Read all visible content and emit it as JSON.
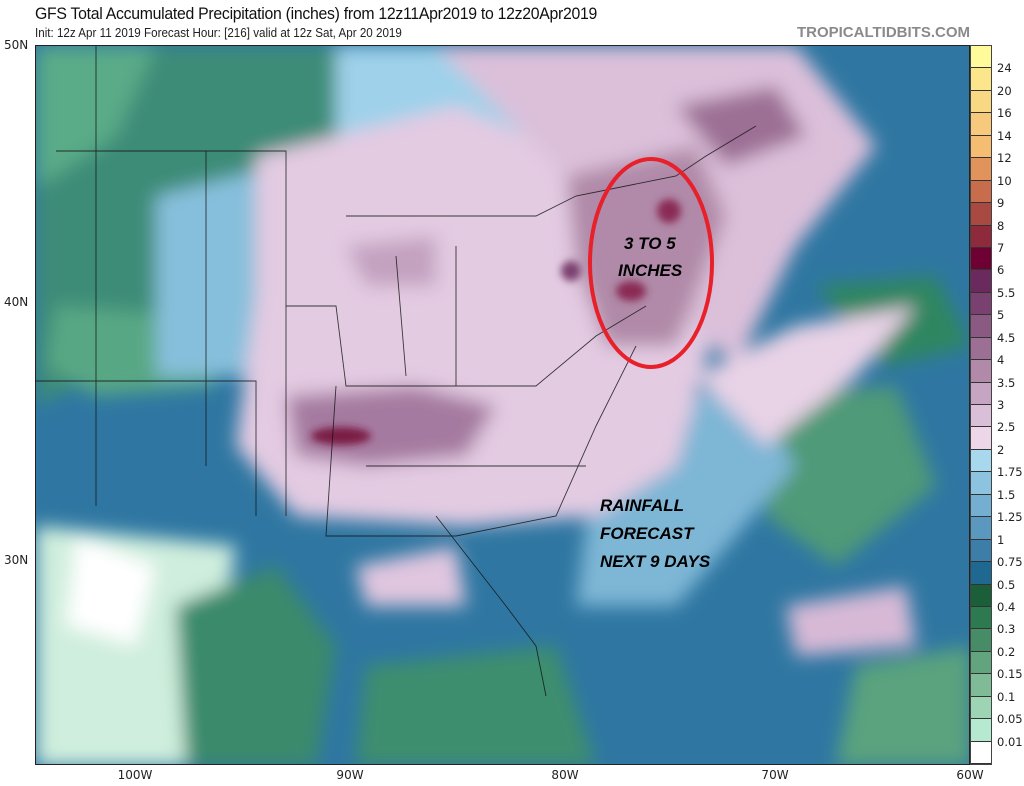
{
  "header": {
    "title": "GFS Total Accumulated Precipitation (inches) from 12z11Apr2019 to 12z20Apr2019",
    "subtitle": "Init: 12z Apr 11 2019   Forecast Hour: [216]   valid at 12z Sat, Apr 20 2019",
    "brand": "TROPICALTIDBITS.COM"
  },
  "map": {
    "lat_labels": [
      "50N",
      "40N",
      "30N"
    ],
    "lon_labels": [
      "100W",
      "90W",
      "80W",
      "70W",
      "60W"
    ],
    "annotations": {
      "circled_label": [
        "3 TO 5",
        "INCHES"
      ],
      "forecast_label": [
        "RAINFALL",
        "FORECAST",
        "NEXT 9 DAYS"
      ],
      "circle_color": "#e8202a"
    }
  },
  "legend": {
    "labels": [
      "24",
      "20",
      "16",
      "14",
      "12",
      "10",
      "9",
      "8",
      "7",
      "6",
      "5.5",
      "5",
      "4.5",
      "4",
      "3.5",
      "3",
      "2.5",
      "2",
      "1.75",
      "1.5",
      "1.25",
      "1",
      "0.75",
      "0.5",
      "0.4",
      "0.3",
      "0.2",
      "0.15",
      "0.1",
      "0.05",
      "0.01"
    ],
    "colors": [
      "#fffb9a",
      "#fce68c",
      "#f9d884",
      "#f6c97c",
      "#f4bd72",
      "#e0935a",
      "#c76d4c",
      "#a84a42",
      "#8e2a3c",
      "#6e0033",
      "#6a2a5e",
      "#7a4070",
      "#8b5a82",
      "#9c7094",
      "#b08aa8",
      "#c5a5c2",
      "#d9bfd7",
      "#ecd6e8",
      "#a8d8ee",
      "#8cc3de",
      "#74aed0",
      "#5b98bf",
      "#3d7ea8",
      "#1e6891",
      "#1a5e3a",
      "#2d7a50",
      "#468c66",
      "#62a47e",
      "#80bb98",
      "#9dd5b4",
      "#b5ead0",
      "#ffffff"
    ]
  }
}
